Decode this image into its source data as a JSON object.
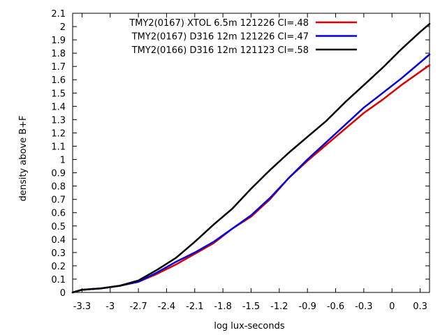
{
  "chart_data": {
    "type": "line",
    "title": "",
    "xlabel": "log lux-seconds",
    "ylabel": "density above B+F",
    "xlim": [
      -3.4,
      0.4
    ],
    "ylim": [
      0,
      2.1
    ],
    "xticks": [
      -3.3,
      -3,
      -2.7,
      -2.4,
      -2.1,
      -1.8,
      -1.5,
      -1.2,
      -0.9,
      -0.6,
      -0.3,
      0,
      0.3
    ],
    "xtick_labels": [
      "-3.3",
      "-3",
      "-2.7",
      "-2.4",
      "-2.1",
      "-1.8",
      "-1.5",
      "-1.2",
      "-0.9",
      "-0.6",
      "-0.3",
      "0",
      "0.3"
    ],
    "yticks": [
      0,
      0.1,
      0.2,
      0.3,
      0.4,
      0.5,
      0.6,
      0.7,
      0.8,
      0.9,
      1,
      1.1,
      1.2,
      1.3,
      1.4,
      1.5,
      1.6,
      1.7,
      1.8,
      1.9,
      2,
      2.1
    ],
    "ytick_labels": [
      "0",
      "0.1",
      "0.2",
      "0.3",
      "0.4",
      "0.5",
      "0.6",
      "0.7",
      "0.8",
      "0.9",
      "1",
      "1.1",
      "1.2",
      "1.3",
      "1.4",
      "1.5",
      "1.6",
      "1.7",
      "1.8",
      "1.9",
      "2",
      "2.1"
    ],
    "grid": false,
    "legend_position": "top-right",
    "series": [
      {
        "name": "TMY2(0167) XTOL 6.5m 121226 CI=.48",
        "color": "#dd0000",
        "points": [
          [
            -3.4,
            0
          ],
          [
            -3.3,
            0.02
          ],
          [
            -3.1,
            0.03
          ],
          [
            -2.9,
            0.05
          ],
          [
            -2.7,
            0.08
          ],
          [
            -2.5,
            0.14
          ],
          [
            -2.3,
            0.21
          ],
          [
            -2.1,
            0.29
          ],
          [
            -1.9,
            0.37
          ],
          [
            -1.7,
            0.48
          ],
          [
            -1.5,
            0.57
          ],
          [
            -1.3,
            0.7
          ],
          [
            -1.1,
            0.86
          ],
          [
            -0.9,
            0.99
          ],
          [
            -0.7,
            1.11
          ],
          [
            -0.5,
            1.23
          ],
          [
            -0.3,
            1.35
          ],
          [
            -0.1,
            1.45
          ],
          [
            0.1,
            1.56
          ],
          [
            0.3,
            1.66
          ],
          [
            0.4,
            1.71
          ]
        ]
      },
      {
        "name": "TMY2(0167) D316 12m 121226 CI=.47",
        "color": "#0000dd",
        "points": [
          [
            -3.4,
            0
          ],
          [
            -3.3,
            0.02
          ],
          [
            -3.1,
            0.03
          ],
          [
            -2.9,
            0.05
          ],
          [
            -2.7,
            0.08
          ],
          [
            -2.5,
            0.15
          ],
          [
            -2.3,
            0.23
          ],
          [
            -2.1,
            0.3
          ],
          [
            -1.9,
            0.38
          ],
          [
            -1.7,
            0.48
          ],
          [
            -1.5,
            0.58
          ],
          [
            -1.3,
            0.71
          ],
          [
            -1.1,
            0.86
          ],
          [
            -0.9,
            1.0
          ],
          [
            -0.7,
            1.13
          ],
          [
            -0.5,
            1.26
          ],
          [
            -0.3,
            1.39
          ],
          [
            -0.1,
            1.5
          ],
          [
            0.1,
            1.61
          ],
          [
            0.3,
            1.73
          ],
          [
            0.4,
            1.79
          ]
        ]
      },
      {
        "name": "TMY2(0166) D316 12m 121123 CI=.58",
        "color": "#000000",
        "points": [
          [
            -3.4,
            0
          ],
          [
            -3.3,
            0.02
          ],
          [
            -3.1,
            0.03
          ],
          [
            -2.9,
            0.05
          ],
          [
            -2.7,
            0.09
          ],
          [
            -2.5,
            0.17
          ],
          [
            -2.3,
            0.26
          ],
          [
            -2.1,
            0.38
          ],
          [
            -1.9,
            0.51
          ],
          [
            -1.7,
            0.63
          ],
          [
            -1.5,
            0.78
          ],
          [
            -1.3,
            0.92
          ],
          [
            -1.1,
            1.05
          ],
          [
            -0.9,
            1.17
          ],
          [
            -0.7,
            1.29
          ],
          [
            -0.5,
            1.43
          ],
          [
            -0.3,
            1.56
          ],
          [
            -0.1,
            1.69
          ],
          [
            0.1,
            1.83
          ],
          [
            0.3,
            1.96
          ],
          [
            0.4,
            2.02
          ]
        ]
      }
    ]
  }
}
